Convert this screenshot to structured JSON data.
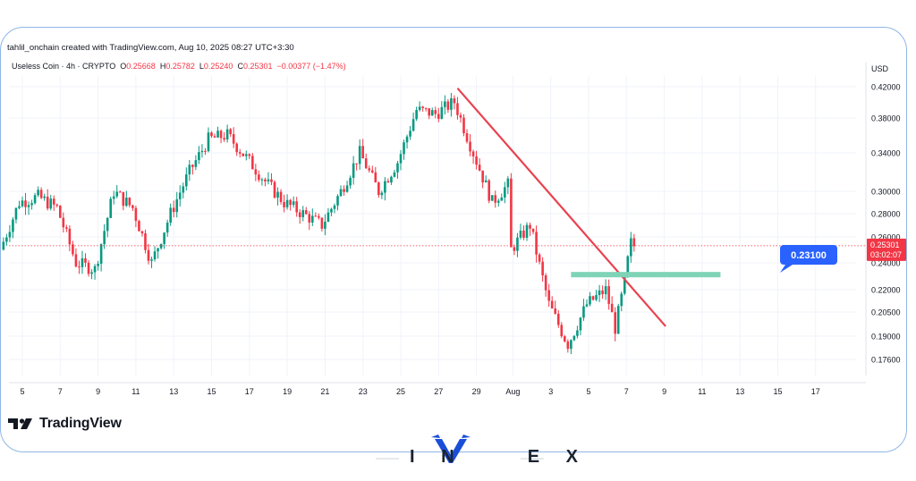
{
  "header": {
    "attribution": "tahlil_onchain created with TradingView.com, Aug 10, 2025 08:27 UTC+3:30",
    "symbol": "Useless Coin · 4h · CRYPTO",
    "ohlc": {
      "o_label": "O",
      "o_value": "0.25668",
      "h_label": "H",
      "h_value": "0.25782",
      "l_label": "L",
      "l_value": "0.25240",
      "c_label": "C",
      "c_value": "0.25301",
      "change": "−0.00377 (−1.47%)"
    }
  },
  "branding": {
    "tradingview": "TradingView",
    "watermark": "INVEX"
  },
  "colors": {
    "up": "#089981",
    "down": "#f23645",
    "trendline": "#e8424f",
    "zone": "#7fd3b6",
    "callout": "#2962ff",
    "frame": "#8fb6e6"
  },
  "chart_data": {
    "type": "candlestick",
    "currency_label": "USD",
    "y_scale": "log",
    "ylim": [
      0.165,
      0.435
    ],
    "y_ticks": [
      "0.42000",
      "0.38000",
      "0.34000",
      "0.30000",
      "0.28000",
      "0.26000",
      "0.24000",
      "0.22000",
      "0.20500",
      "0.19000",
      "0.17600"
    ],
    "x_ticks": [
      "5",
      "7",
      "9",
      "11",
      "13",
      "15",
      "17",
      "19",
      "21",
      "23",
      "25",
      "27",
      "29",
      "Aug",
      "3",
      "5",
      "7",
      "9",
      "11",
      "13",
      "15",
      "17"
    ],
    "last_price": "0.25301",
    "countdown": "03:02:07",
    "annotation": {
      "label": "0.23100",
      "zone_price": 0.231
    },
    "trendline": {
      "from": {
        "date": "Jul 28",
        "price": 0.418
      },
      "to": {
        "date": "Aug 12",
        "price": 0.196
      }
    },
    "price_path": [
      {
        "date": "Jul 4",
        "price": 0.25
      },
      {
        "date": "Jul 5",
        "price": 0.29
      },
      {
        "date": "Jul 6",
        "price": 0.295
      },
      {
        "date": "Jul 7",
        "price": 0.285
      },
      {
        "date": "Jul 8",
        "price": 0.24
      },
      {
        "date": "Jul 9",
        "price": 0.235
      },
      {
        "date": "Jul 10",
        "price": 0.3
      },
      {
        "date": "Jul 11",
        "price": 0.285
      },
      {
        "date": "Jul 12",
        "price": 0.24
      },
      {
        "date": "Jul 13",
        "price": 0.28
      },
      {
        "date": "Jul 14",
        "price": 0.32
      },
      {
        "date": "Jul 15",
        "price": 0.355
      },
      {
        "date": "Jul 16",
        "price": 0.36
      },
      {
        "date": "Jul 17",
        "price": 0.335
      },
      {
        "date": "Jul 18",
        "price": 0.31
      },
      {
        "date": "Jul 19",
        "price": 0.29
      },
      {
        "date": "Jul 20",
        "price": 0.28
      },
      {
        "date": "Jul 21",
        "price": 0.27
      },
      {
        "date": "Jul 22",
        "price": 0.3
      },
      {
        "date": "Jul 23",
        "price": 0.34
      },
      {
        "date": "Jul 24",
        "price": 0.3
      },
      {
        "date": "Jul 25",
        "price": 0.33
      },
      {
        "date": "Jul 26",
        "price": 0.39
      },
      {
        "date": "Jul 27",
        "price": 0.385
      },
      {
        "date": "Jul 28",
        "price": 0.4
      },
      {
        "date": "Jul 29",
        "price": 0.34
      },
      {
        "date": "Jul 30",
        "price": 0.29
      },
      {
        "date": "Jul 31",
        "price": 0.31
      },
      {
        "date": "Aug 1",
        "price": 0.26
      },
      {
        "date": "Aug 2",
        "price": 0.24
      },
      {
        "date": "Aug 3",
        "price": 0.22
      },
      {
        "date": "Aug 4",
        "price": 0.25
      },
      {
        "date": "Aug 5",
        "price": 0.27
      },
      {
        "date": "Aug 6",
        "price": 0.21
      },
      {
        "date": "Aug 7",
        "price": 0.185
      },
      {
        "date": "Aug 8",
        "price": 0.21
      },
      {
        "date": "Aug 9",
        "price": 0.22
      },
      {
        "date": "Aug 9.5",
        "price": 0.195
      },
      {
        "date": "Aug 10",
        "price": 0.225
      },
      {
        "date": "Aug 10.3",
        "price": 0.256
      },
      {
        "date": "Aug 10.4",
        "price": 0.25301
      }
    ]
  }
}
